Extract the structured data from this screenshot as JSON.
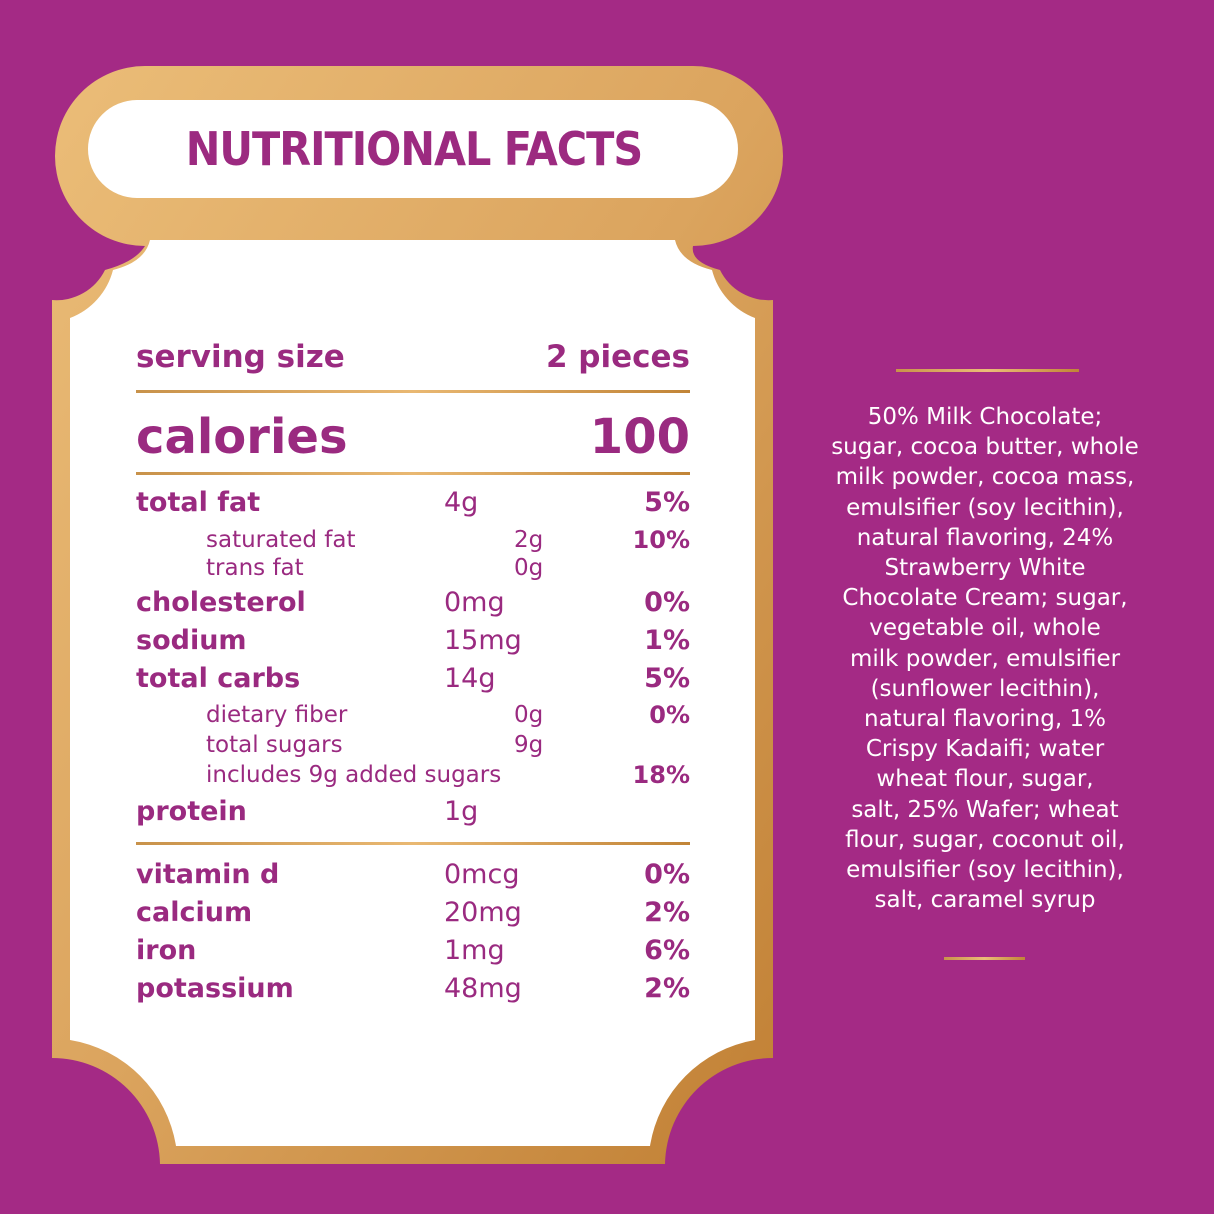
{
  "title": "NUTRITIONAL FACTS",
  "colors": {
    "background": "#a42a85",
    "gold_light": "#ebbd78",
    "gold_dark": "#c18437",
    "text_purple": "#9a2a80",
    "panel_white": "#ffffff"
  },
  "serving": {
    "label": "serving size",
    "value": "2 pieces"
  },
  "calories": {
    "label": "calories",
    "value": "100"
  },
  "nutrients": [
    {
      "label": "total fat",
      "amount": "4g",
      "dv": "5%"
    },
    {
      "label": "saturated fat",
      "amount": "2g",
      "dv": "10%"
    },
    {
      "label": "trans fat",
      "amount": "0g",
      "dv": ""
    },
    {
      "label": "cholesterol",
      "amount": "0mg",
      "dv": "0%"
    },
    {
      "label": "sodium",
      "amount": "15mg",
      "dv": "1%"
    },
    {
      "label": "total carbs",
      "amount": "14g",
      "dv": "5%"
    },
    {
      "label": "dietary fiber",
      "amount": "0g",
      "dv": "0%"
    },
    {
      "label": "total sugars",
      "amount": "9g",
      "dv": ""
    },
    {
      "label": "includes 9g added sugars",
      "amount": "",
      "dv": "18%"
    },
    {
      "label": "protein",
      "amount": "1g",
      "dv": ""
    }
  ],
  "vitamins": [
    {
      "label": "vitamin d",
      "amount": "0mcg",
      "dv": "0%"
    },
    {
      "label": "calcium",
      "amount": "20mg",
      "dv": "2%"
    },
    {
      "label": "iron",
      "amount": "1mg",
      "dv": "6%"
    },
    {
      "label": "potassium",
      "amount": "48mg",
      "dv": "2%"
    }
  ],
  "ingredients": [
    "50% Milk Chocolate;",
    "sugar, cocoa butter, whole",
    "milk powder, cocoa mass,",
    "emulsifier (soy lecithin),",
    "natural flavoring, 24%",
    "Strawberry White",
    "Chocolate Cream; sugar,",
    "vegetable oil, whole",
    "milk powder, emulsifier",
    "(sunflower lecithin),",
    "natural flavoring, 1%",
    "Crispy Kadaifi; water",
    "wheat flour, sugar,",
    "salt, 25% Wafer; wheat",
    "flour, sugar, coconut oil,",
    "emulsifier (soy lecithin),",
    "salt, caramel syrup"
  ]
}
